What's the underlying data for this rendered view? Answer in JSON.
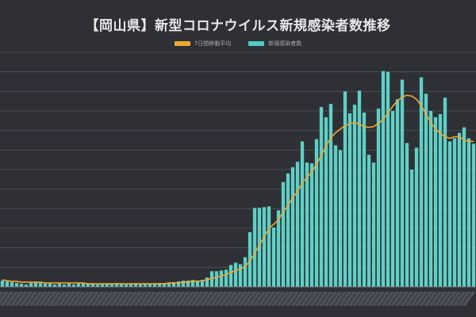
{
  "chart_data": {
    "type": "bar",
    "title": "【岡山県】新型コロナウイルス新規感染者数推移",
    "legend": [
      {
        "name": "7日間移動平均",
        "color": "#f0a830",
        "kind": "line"
      },
      {
        "name": "新規感染者数",
        "color": "#4ecdc4",
        "kind": "bar"
      }
    ],
    "legend_position": "top-center",
    "grid": true,
    "colors": {
      "background": "#2e3035",
      "grid": "#4a4d54",
      "bar": "#5fd0c6",
      "line": "#f0a830"
    },
    "ylim": [
      0,
      300
    ],
    "series": [
      {
        "name": "新規感染者数",
        "type": "bar",
        "values": [
          8,
          7,
          6,
          5,
          4,
          3,
          5,
          6,
          5,
          4,
          4,
          3,
          4,
          3,
          4,
          3,
          4,
          4,
          4,
          4,
          3,
          4,
          4,
          4,
          5,
          4,
          3,
          4,
          4,
          3,
          4,
          4,
          4,
          5,
          5,
          5,
          6,
          7,
          8,
          8,
          9,
          8,
          9,
          12,
          20,
          20,
          21,
          22,
          28,
          31,
          29,
          38,
          70,
          101,
          101,
          102,
          103,
          76,
          98,
          134,
          145,
          153,
          160,
          186,
          159,
          158,
          189,
          230,
          217,
          234,
          181,
          175,
          250,
          222,
          233,
          251,
          223,
          169,
          159,
          228,
          276,
          275,
          225,
          240,
          265,
          184,
          150,
          178,
          268,
          247,
          225,
          217,
          221,
          242,
          186,
          190,
          197,
          204,
          190,
          183
        ]
      },
      {
        "name": "7日間移動平均",
        "type": "line",
        "values": [
          9,
          8,
          7,
          7,
          6,
          6,
          6,
          6,
          6,
          5,
          5,
          5,
          5,
          5,
          5,
          5,
          5,
          5,
          4,
          4,
          4,
          4,
          4,
          4,
          4,
          4,
          4,
          4,
          4,
          4,
          4,
          4,
          4,
          4,
          4,
          5,
          5,
          5,
          6,
          6,
          7,
          7,
          8,
          9,
          11,
          12,
          14,
          16,
          18,
          21,
          23,
          26,
          33,
          43,
          53,
          64,
          75,
          80,
          86,
          96,
          104,
          114,
          122,
          133,
          140,
          147,
          157,
          168,
          180,
          191,
          197,
          202,
          206,
          209,
          210,
          208,
          205,
          204,
          205,
          209,
          214,
          222,
          231,
          238,
          243,
          245,
          244,
          240,
          232,
          221,
          210,
          202,
          196,
          192,
          190,
          192,
          192,
          188,
          186,
          186
        ]
      }
    ]
  }
}
